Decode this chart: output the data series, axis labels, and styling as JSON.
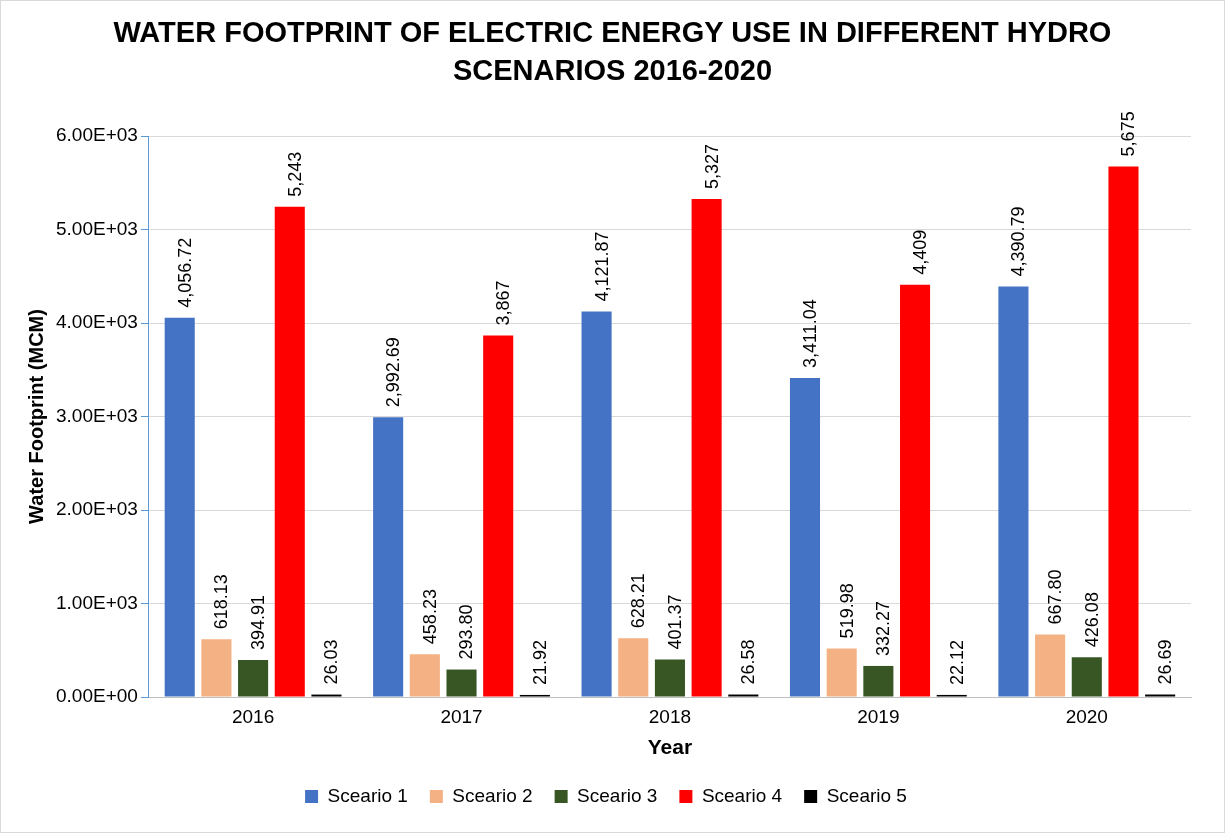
{
  "chart_data": {
    "type": "bar",
    "title": "WATER FOOTPRINT OF ELECTRIC ENERGY USE IN DIFFERENT HYDRO SCENARIOS 2016-2020",
    "xlabel": "Year",
    "ylabel": "Water Footprint (MCM)",
    "categories": [
      "2016",
      "2017",
      "2018",
      "2019",
      "2020"
    ],
    "series": [
      {
        "name": "Sceario 1",
        "color": "#4472c4",
        "values": [
          4056.72,
          2992.69,
          4121.87,
          3411.04,
          4390.79
        ],
        "value_labels": [
          "4,056.72",
          "2,992.69",
          "4,121.87",
          "3,411.04",
          "4,390.79"
        ]
      },
      {
        "name": "Sceario 2",
        "color": "#f4b183",
        "values": [
          618.13,
          458.23,
          628.21,
          519.98,
          667.8
        ],
        "value_labels": [
          "618.13",
          "458.23",
          "628.21",
          "519.98",
          "667.80"
        ]
      },
      {
        "name": "Sceario 3",
        "color": "#375623",
        "values": [
          394.91,
          293.8,
          401.37,
          332.27,
          426.08
        ],
        "value_labels": [
          "394.91",
          "293.80",
          "401.37",
          "332.27",
          "426.08"
        ]
      },
      {
        "name": "Sceario 4",
        "color": "#ff0000",
        "values": [
          5243,
          3867,
          5327,
          4409,
          5675
        ],
        "value_labels": [
          "5,243",
          "3,867",
          "5,327",
          "4,409",
          "5,675"
        ]
      },
      {
        "name": "Sceario 5",
        "color": "#000000",
        "values": [
          26.03,
          21.92,
          26.58,
          22.12,
          26.69
        ],
        "value_labels": [
          "26.03",
          "21.92",
          "26.58",
          "22.12",
          "26.69"
        ]
      }
    ],
    "ylim": [
      0,
      6000
    ],
    "yticks": [
      {
        "value": 0,
        "label": "0.00E+00"
      },
      {
        "value": 1000,
        "label": "1.00E+03"
      },
      {
        "value": 2000,
        "label": "2.00E+03"
      },
      {
        "value": 3000,
        "label": "3.00E+03"
      },
      {
        "value": 4000,
        "label": "4.00E+03"
      },
      {
        "value": 5000,
        "label": "5.00E+03"
      },
      {
        "value": 6000,
        "label": "6.00E+03"
      }
    ],
    "grid": "y",
    "legend": "bottom"
  }
}
